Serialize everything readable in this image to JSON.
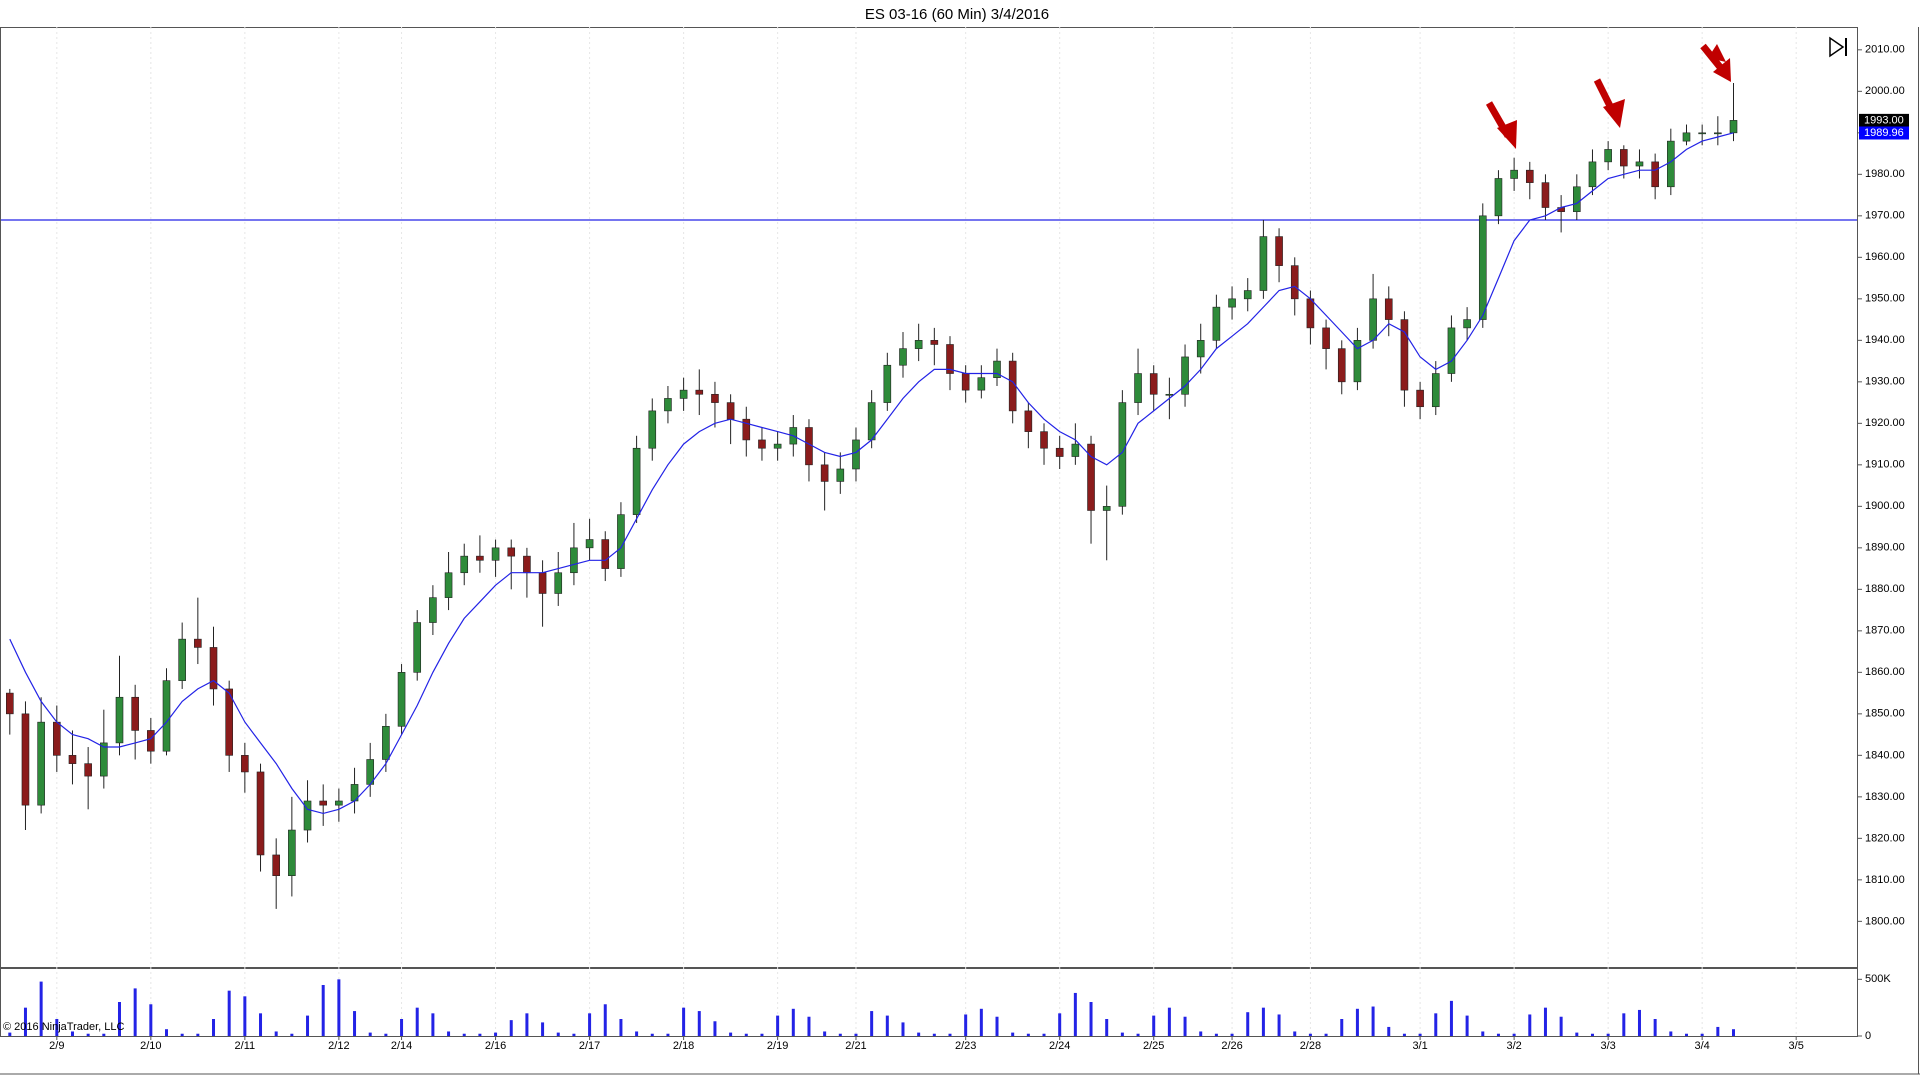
{
  "chart_data": {
    "type": "candlestick",
    "title": "ES 03-16 (60 Min)  3/4/2016",
    "copyright": "© 2016 NinjaTrader, LLC",
    "categories": [
      null,
      null,
      null,
      "2/9",
      null,
      null,
      null,
      null,
      null,
      "2/10",
      null,
      null,
      null,
      null,
      null,
      "2/11",
      null,
      null,
      null,
      null,
      null,
      "2/12",
      null,
      null,
      null,
      "2/14",
      null,
      null,
      null,
      null,
      null,
      "2/16",
      null,
      null,
      null,
      null,
      null,
      "2/17",
      null,
      null,
      null,
      null,
      null,
      "2/18",
      null,
      null,
      null,
      null,
      null,
      "2/19",
      null,
      null,
      null,
      null,
      "2/21",
      null,
      null,
      null,
      null,
      null,
      null,
      "2/23",
      null,
      null,
      null,
      null,
      null,
      "2/24",
      null,
      null,
      null,
      null,
      null,
      "2/25",
      null,
      null,
      null,
      null,
      "2/26",
      null,
      null,
      null,
      null,
      "2/28",
      null,
      null,
      null,
      null,
      null,
      null,
      "3/1",
      null,
      null,
      null,
      null,
      null,
      "3/2",
      null,
      null,
      null,
      null,
      null,
      "3/3",
      null,
      null,
      null,
      null,
      null,
      "3/4",
      null,
      null,
      null,
      null,
      null,
      "3/5"
    ],
    "open": [
      1855,
      1850,
      1828,
      1848,
      1840,
      1838,
      1835,
      1843,
      1854,
      1846,
      1841,
      1858,
      1868,
      1866,
      1856,
      1840,
      1836,
      1816,
      1811,
      1822,
      1829,
      1828,
      1829,
      1833,
      1839,
      1847,
      1860,
      1872,
      1878,
      1884,
      1888,
      1887,
      1890,
      1888,
      1884,
      1879,
      1884,
      1890,
      1892,
      1885,
      1898,
      1914,
      1923,
      1926,
      1928,
      1927,
      1925,
      1921,
      1916,
      1914,
      1915,
      1919,
      1910,
      1906,
      1909,
      1916,
      1925,
      1934,
      1938,
      1940,
      1939,
      1932,
      1928,
      1931,
      1935,
      1923,
      1918,
      1914,
      1912,
      1915,
      1899,
      1900,
      1925,
      1932,
      1927,
      1927,
      1936,
      1940,
      1948,
      1950,
      1952,
      1965,
      1958,
      1950,
      1943,
      1938,
      1930,
      1940,
      1950,
      1945,
      1928,
      1924,
      1932,
      1943,
      1945,
      1970,
      1979,
      1981,
      1978,
      1972,
      1971,
      1977,
      1983,
      1986,
      1982,
      1983,
      1977,
      1988,
      1990,
      1990,
      1990,
      null,
      null,
      null,
      null
    ],
    "high": [
      1856,
      1853,
      1854,
      1852,
      1846,
      1842,
      1851,
      1864,
      1857,
      1849,
      1861,
      1872,
      1878,
      1871,
      1858,
      1843,
      1838,
      1820,
      1830,
      1834,
      1833,
      1832,
      1837,
      1843,
      1850,
      1862,
      1875,
      1881,
      1889,
      1891,
      1893,
      1892,
      1892,
      1890,
      1887,
      1889,
      1896,
      1897,
      1894,
      1901,
      1917,
      1926,
      1929,
      1931,
      1933,
      1930,
      1927,
      1924,
      1919,
      1918,
      1922,
      1921,
      1913,
      1913,
      1919,
      1928,
      1937,
      1942,
      1944,
      1943,
      1941,
      1934,
      1934,
      1938,
      1937,
      1925,
      1920,
      1917,
      1920,
      1917,
      1905,
      1928,
      1938,
      1934,
      1931,
      1939,
      1944,
      1951,
      1953,
      1955,
      1969,
      1967,
      1960,
      1952,
      1945,
      1940,
      1943,
      1956,
      1953,
      1947,
      1930,
      1935,
      1946,
      1948,
      1973,
      1981,
      1984,
      1983,
      1980,
      1975,
      1980,
      1986,
      1988,
      1987,
      1986,
      1985,
      1991,
      1992,
      1992,
      1994,
      2002,
      null,
      null,
      null,
      null
    ],
    "low": [
      1845,
      1822,
      1826,
      1836,
      1833,
      1827,
      1832,
      1840,
      1839,
      1838,
      1840,
      1856,
      1862,
      1852,
      1836,
      1831,
      1812,
      1803,
      1806,
      1819,
      1823,
      1824,
      1826,
      1830,
      1836,
      1845,
      1858,
      1869,
      1875,
      1881,
      1884,
      1883,
      1880,
      1878,
      1871,
      1876,
      1881,
      1887,
      1882,
      1883,
      1896,
      1911,
      1920,
      1923,
      1922,
      1919,
      1915,
      1912,
      1911,
      1911,
      1912,
      1906,
      1899,
      1903,
      1906,
      1914,
      1923,
      1931,
      1935,
      1934,
      1928,
      1925,
      1926,
      1929,
      1920,
      1914,
      1910,
      1909,
      1910,
      1891,
      1887,
      1898,
      1922,
      1923,
      1921,
      1924,
      1932,
      1938,
      1945,
      1947,
      1950,
      1954,
      1946,
      1939,
      1933,
      1927,
      1928,
      1938,
      1941,
      1924,
      1921,
      1922,
      1930,
      1940,
      1943,
      1968,
      1976,
      1974,
      1969,
      1966,
      1969,
      1975,
      1981,
      1979,
      1979,
      1974,
      1975,
      1987,
      1987,
      1987,
      1988,
      null,
      null,
      null,
      null
    ],
    "close": [
      1850,
      1828,
      1848,
      1840,
      1838,
      1835,
      1843,
      1854,
      1846,
      1841,
      1858,
      1868,
      1866,
      1856,
      1840,
      1836,
      1816,
      1811,
      1822,
      1829,
      1828,
      1829,
      1833,
      1839,
      1847,
      1860,
      1872,
      1878,
      1884,
      1888,
      1887,
      1890,
      1888,
      1884,
      1879,
      1884,
      1890,
      1892,
      1885,
      1898,
      1914,
      1923,
      1926,
      1928,
      1927,
      1925,
      1921,
      1916,
      1914,
      1915,
      1919,
      1910,
      1906,
      1909,
      1916,
      1925,
      1934,
      1938,
      1940,
      1939,
      1932,
      1928,
      1931,
      1935,
      1923,
      1918,
      1914,
      1912,
      1915,
      1899,
      1900,
      1925,
      1932,
      1927,
      1927,
      1936,
      1940,
      1948,
      1950,
      1952,
      1965,
      1958,
      1950,
      1943,
      1938,
      1930,
      1940,
      1950,
      1945,
      1928,
      1924,
      1932,
      1943,
      1945,
      1970,
      1979,
      1981,
      1978,
      1972,
      1971,
      1977,
      1983,
      1986,
      1982,
      1983,
      1977,
      1988,
      1990,
      1990,
      1990,
      1993,
      null,
      null,
      null,
      null
    ],
    "up_color": "#2e8b3a",
    "down_color": "#8b1c1c",
    "sma": {
      "color": "#2323e6",
      "values": [
        1868,
        1860,
        1853,
        1848,
        1845,
        1844,
        1842,
        1842,
        1843,
        1844,
        1848,
        1853,
        1856,
        1858,
        1855,
        1848,
        1843,
        1838,
        1832,
        1827,
        1826,
        1827,
        1829,
        1833,
        1838,
        1845,
        1852,
        1860,
        1867,
        1873,
        1877,
        1881,
        1884,
        1884,
        1884,
        1885,
        1886,
        1887,
        1887,
        1890,
        1897,
        1904,
        1910,
        1915,
        1918,
        1920,
        1921,
        1920,
        1919,
        1918,
        1917,
        1915,
        1913,
        1912,
        1913,
        1916,
        1921,
        1926,
        1930,
        1933,
        1933,
        1932,
        1932,
        1932,
        1930,
        1925,
        1921,
        1918,
        1916,
        1912,
        1910,
        1913,
        1920,
        1923,
        1926,
        1929,
        1933,
        1938,
        1941,
        1944,
        1948,
        1952,
        1953,
        1950,
        1946,
        1942,
        1938,
        1940,
        1944,
        1942,
        1936,
        1933,
        1935,
        1940,
        1946,
        1955,
        1964,
        1969,
        1970,
        1972,
        1973,
        1976,
        1979,
        1980,
        1981,
        1981,
        1983,
        1986,
        1988,
        1989,
        1990,
        null,
        null,
        null,
        null
      ]
    },
    "hlines": [
      {
        "value": 1969,
        "color": "#2323e6"
      }
    ],
    "price_markers": [
      {
        "value": 1993,
        "label": "1993.00",
        "color": "#000000"
      },
      {
        "value": 1989.96,
        "label": "1989.96",
        "color": "#0000ff"
      }
    ],
    "ylim": [
      1789,
      2015.5
    ],
    "yticks": [
      {
        "value": 1800,
        "label": "1800.00"
      },
      {
        "value": 1810,
        "label": "1810.00"
      },
      {
        "value": 1820,
        "label": "1820.00"
      },
      {
        "value": 1830,
        "label": "1830.00"
      },
      {
        "value": 1840,
        "label": "1840.00"
      },
      {
        "value": 1850,
        "label": "1850.00"
      },
      {
        "value": 1860,
        "label": "1860.00"
      },
      {
        "value": 1870,
        "label": "1870.00"
      },
      {
        "value": 1880,
        "label": "1880.00"
      },
      {
        "value": 1890,
        "label": "1890.00"
      },
      {
        "value": 1900,
        "label": "1900.00"
      },
      {
        "value": 1910,
        "label": "1910.00"
      },
      {
        "value": 1920,
        "label": "1920.00"
      },
      {
        "value": 1930,
        "label": "1930.00"
      },
      {
        "value": 1940,
        "label": "1940.00"
      },
      {
        "value": 1950,
        "label": "1950.00"
      },
      {
        "value": 1960,
        "label": "1960.00"
      },
      {
        "value": 1970,
        "label": "1970.00"
      },
      {
        "value": 1980,
        "label": "1980.00"
      },
      {
        "value": 1990,
        "label": "1990.00"
      },
      {
        "value": 2000,
        "label": "2000.00"
      },
      {
        "value": 2010,
        "label": "2010.00"
      }
    ],
    "volume": {
      "color": "#2323e6",
      "ylim": [
        0,
        600000
      ],
      "yticks": [
        0,
        {
          "value": 500000,
          "label": "500K"
        }
      ],
      "values": [
        30000,
        250000,
        480000,
        150000,
        40000,
        20000,
        20000,
        300000,
        420000,
        280000,
        60000,
        20000,
        20000,
        150000,
        400000,
        350000,
        200000,
        40000,
        20000,
        180000,
        450000,
        500000,
        220000,
        30000,
        20000,
        150000,
        250000,
        200000,
        40000,
        20000,
        20000,
        30000,
        140000,
        200000,
        120000,
        30000,
        20000,
        200000,
        280000,
        150000,
        40000,
        20000,
        20000,
        250000,
        220000,
        130000,
        30000,
        20000,
        20000,
        180000,
        240000,
        170000,
        40000,
        20000,
        20000,
        220000,
        180000,
        120000,
        30000,
        20000,
        20000,
        190000,
        240000,
        170000,
        30000,
        20000,
        20000,
        200000,
        380000,
        300000,
        150000,
        30000,
        20000,
        180000,
        250000,
        170000,
        40000,
        20000,
        20000,
        210000,
        250000,
        190000,
        40000,
        20000,
        20000,
        150000,
        240000,
        260000,
        80000,
        20000,
        20000,
        200000,
        310000,
        180000,
        40000,
        20000,
        20000,
        190000,
        250000,
        170000,
        30000,
        20000,
        20000,
        200000,
        230000,
        150000,
        40000,
        20000,
        20000,
        80000,
        60000,
        null,
        null,
        null,
        null
      ]
    }
  }
}
